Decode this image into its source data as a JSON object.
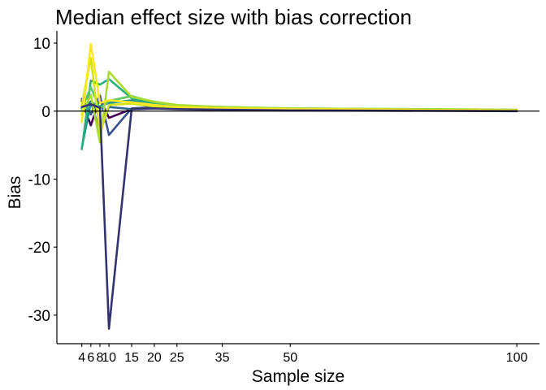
{
  "chart_data": {
    "type": "line",
    "title": "Median effect size with bias correction",
    "xlabel": "Sample size",
    "ylabel": "Bias",
    "x": [
      4,
      6,
      8,
      10,
      15,
      20,
      25,
      35,
      50,
      100
    ],
    "x_ticks": [
      "4",
      "6",
      "8",
      "10",
      "15",
      "20",
      "25",
      "35",
      "50",
      "100"
    ],
    "y_ticks": [
      10,
      0,
      -10,
      -20,
      -30
    ],
    "xlim": [
      -1.5,
      105
    ],
    "ylim": [
      -34.2,
      11.8
    ],
    "reference_line_y": 0,
    "grid": false,
    "legend": "none",
    "series": [
      {
        "color": "#440154",
        "values": [
          1.5,
          -2.1,
          1.9,
          -1.0,
          0.3,
          0.5,
          0.5,
          0.4,
          0.3,
          0.1
        ]
      },
      {
        "color": "#3b528b",
        "values": [
          1.8,
          -0.5,
          2.3,
          -3.5,
          0.4,
          0.6,
          0.5,
          0.4,
          0.3,
          0.1
        ]
      },
      {
        "color": "#31688e",
        "values": [
          0.4,
          1.4,
          -3.1,
          0.6,
          0.3,
          0.4,
          0.4,
          0.3,
          0.2,
          0.1
        ]
      },
      {
        "color": "#21918c",
        "values": [
          -5.4,
          1.3,
          0.7,
          1.2,
          1.6,
          0.9,
          0.6,
          0.4,
          0.3,
          0.1
        ]
      },
      {
        "color": "#2ab07f",
        "values": [
          -5.6,
          4.5,
          3.9,
          4.7,
          1.9,
          1.1,
          0.7,
          0.5,
          0.3,
          0.1
        ]
      },
      {
        "color": "#5ec962",
        "values": [
          0.3,
          3.5,
          0.3,
          1.5,
          2.2,
          1.3,
          0.8,
          0.6,
          0.4,
          0.2
        ]
      },
      {
        "color": "#addc30",
        "values": [
          -0.5,
          2.4,
          -4.6,
          5.8,
          2.1,
          1.4,
          0.9,
          0.6,
          0.4,
          0.2
        ]
      },
      {
        "color": "#d4e21a",
        "values": [
          0.9,
          7.8,
          -3.3,
          0.9,
          1.1,
          0.7,
          0.5,
          0.4,
          0.3,
          0.1
        ]
      },
      {
        "color": "#fde725",
        "values": [
          -1.6,
          9.9,
          1.2,
          1.6,
          1.3,
          0.9,
          0.6,
          0.4,
          0.3,
          0.1
        ]
      },
      {
        "color": "#35336f",
        "values": [
          0.6,
          1.0,
          0.5,
          -32.0,
          0.3,
          0.4,
          0.3,
          0.2,
          0.1,
          0.0
        ]
      }
    ]
  }
}
